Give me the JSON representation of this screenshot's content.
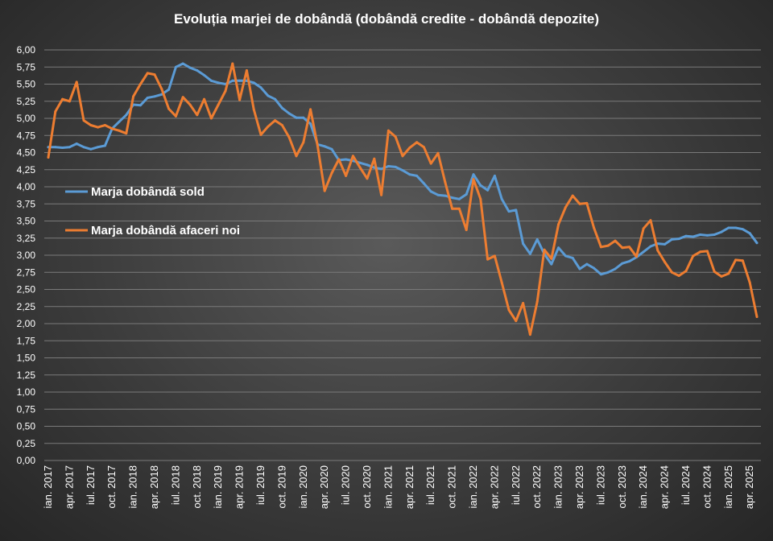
{
  "chart_data": {
    "type": "line",
    "title": "Evoluția marjei de dobândă (dobândă credite - dobândă depozite)",
    "xlabel": "",
    "ylabel": "",
    "ylim": [
      0,
      6
    ],
    "y_ticks": [
      "0,00",
      "0,25",
      "0,50",
      "0,75",
      "1,00",
      "1,25",
      "1,50",
      "1,75",
      "2,00",
      "2,25",
      "2,50",
      "2,75",
      "3,00",
      "3,25",
      "3,50",
      "3,75",
      "4,00",
      "4,25",
      "4,50",
      "4,75",
      "5,00",
      "5,25",
      "5,50",
      "5,75",
      "6,00"
    ],
    "grid": "horizontal",
    "legend": "left-middle",
    "categories": [
      "ian. 2017",
      "feb. 2017",
      "mar. 2017",
      "apr. 2017",
      "mai 2017",
      "iun. 2017",
      "iul. 2017",
      "aug. 2017",
      "sep. 2017",
      "oct. 2017",
      "nov. 2017",
      "dec. 2017",
      "ian. 2018",
      "feb. 2018",
      "mar. 2018",
      "apr. 2018",
      "mai 2018",
      "iun. 2018",
      "iul. 2018",
      "aug. 2018",
      "sep. 2018",
      "oct. 2018",
      "nov. 2018",
      "dec. 2018",
      "ian. 2019",
      "feb. 2019",
      "mar. 2019",
      "apr. 2019",
      "mai 2019",
      "iun. 2019",
      "iul. 2019",
      "aug. 2019",
      "sep. 2019",
      "oct. 2019",
      "nov. 2019",
      "dec. 2019",
      "ian. 2020",
      "feb. 2020",
      "mar. 2020",
      "apr. 2020",
      "mai 2020",
      "iun. 2020",
      "iul. 2020",
      "aug. 2020",
      "sep. 2020",
      "oct. 2020",
      "nov. 2020",
      "dec. 2020",
      "ian. 2021",
      "feb. 2021",
      "mar. 2021",
      "apr. 2021",
      "mai 2021",
      "iun. 2021",
      "iul. 2021",
      "aug. 2021",
      "sep. 2021",
      "oct. 2021",
      "nov. 2021",
      "dec. 2021",
      "ian. 2022",
      "feb. 2022",
      "mar. 2022",
      "apr. 2022",
      "mai 2022",
      "iun. 2022",
      "iul. 2022",
      "aug. 2022",
      "sep. 2022",
      "oct. 2022",
      "nov. 2022",
      "dec. 2022",
      "ian. 2023",
      "feb. 2023",
      "mar. 2023",
      "apr. 2023",
      "mai 2023",
      "iun. 2023",
      "iul. 2023",
      "aug. 2023",
      "sep. 2023",
      "oct. 2023",
      "nov. 2023",
      "dec. 2023",
      "ian. 2024",
      "feb. 2024",
      "mar. 2024",
      "apr. 2024",
      "mai 2024",
      "iun. 2024",
      "iul. 2024",
      "aug. 2024",
      "sep. 2024",
      "oct. 2024",
      "nov. 2024",
      "dec. 2024",
      "ian. 2025",
      "feb. 2025",
      "mar. 2025",
      "apr. 2025",
      "mai 2025"
    ],
    "x_tick_labels": [
      "ian. 2017",
      "apr. 2017",
      "iul. 2017",
      "oct. 2017",
      "ian. 2018",
      "apr. 2018",
      "iul. 2018",
      "oct. 2018",
      "ian. 2019",
      "apr. 2019",
      "iul. 2019",
      "oct. 2019",
      "ian. 2020",
      "apr. 2020",
      "iul. 2020",
      "oct. 2020",
      "ian. 2021",
      "apr. 2021",
      "iul. 2021",
      "oct. 2021",
      "ian. 2022",
      "apr. 2022",
      "iul. 2022",
      "oct. 2022",
      "ian. 2023",
      "apr. 2023",
      "iul. 2023",
      "oct. 2023",
      "ian. 2024",
      "apr. 2024",
      "iul. 2024",
      "oct. 2024",
      "ian. 2025",
      "apr. 2025"
    ],
    "series": [
      {
        "name": "Marja dobândă sold",
        "color": "#5b9bd5",
        "values": [
          4.58,
          4.58,
          4.57,
          4.58,
          4.63,
          4.58,
          4.55,
          4.58,
          4.6,
          4.85,
          4.95,
          5.05,
          5.2,
          5.19,
          5.3,
          5.32,
          5.35,
          5.42,
          5.75,
          5.8,
          5.74,
          5.7,
          5.63,
          5.55,
          5.52,
          5.5,
          5.55,
          5.55,
          5.55,
          5.52,
          5.45,
          5.33,
          5.28,
          5.15,
          5.07,
          5.01,
          5.01,
          4.92,
          4.62,
          4.59,
          4.55,
          4.39,
          4.4,
          4.38,
          4.35,
          4.32,
          4.28,
          4.26,
          4.3,
          4.29,
          4.24,
          4.18,
          4.16,
          4.05,
          3.93,
          3.88,
          3.87,
          3.84,
          3.82,
          3.89,
          4.18,
          4.02,
          3.95,
          4.16,
          3.82,
          3.64,
          3.66,
          3.17,
          3.02,
          3.23,
          3.02,
          2.87,
          3.11,
          2.99,
          2.96,
          2.8,
          2.87,
          2.81,
          2.72,
          2.75,
          2.8,
          2.88,
          2.91,
          2.97,
          3.05,
          3.13,
          3.17,
          3.16,
          3.23,
          3.24,
          3.28,
          3.27,
          3.3,
          3.29,
          3.3,
          3.34,
          3.4,
          3.4,
          3.38,
          3.32,
          3.18
        ]
      },
      {
        "name": "Marja dobândă afaceri noi",
        "color": "#ed7d31",
        "values": [
          4.43,
          5.1,
          5.28,
          5.25,
          5.53,
          4.97,
          4.9,
          4.87,
          4.9,
          4.85,
          4.82,
          4.78,
          5.32,
          5.5,
          5.66,
          5.64,
          5.43,
          5.14,
          5.03,
          5.31,
          5.2,
          5.05,
          5.28,
          5.0,
          5.2,
          5.4,
          5.8,
          5.27,
          5.7,
          5.13,
          4.76,
          4.88,
          4.97,
          4.9,
          4.72,
          4.45,
          4.65,
          5.13,
          4.6,
          3.94,
          4.2,
          4.4,
          4.16,
          4.45,
          4.28,
          4.12,
          4.41,
          3.88,
          4.82,
          4.73,
          4.45,
          4.57,
          4.65,
          4.58,
          4.34,
          4.49,
          4.07,
          3.68,
          3.68,
          3.37,
          4.11,
          3.82,
          2.94,
          2.99,
          2.6,
          2.2,
          2.04,
          2.3,
          1.84,
          2.32,
          3.08,
          2.95,
          3.45,
          3.7,
          3.87,
          3.75,
          3.76,
          3.4,
          3.12,
          3.14,
          3.21,
          3.11,
          3.12,
          2.98,
          3.39,
          3.51,
          3.07,
          2.9,
          2.75,
          2.7,
          2.77,
          2.99,
          3.05,
          3.06,
          2.76,
          2.69,
          2.73,
          2.93,
          2.92,
          2.6,
          2.1
        ]
      }
    ]
  }
}
